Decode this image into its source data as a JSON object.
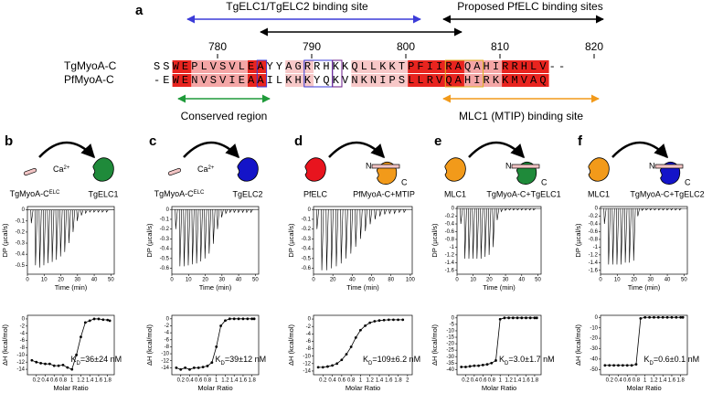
{
  "panel_a": {
    "letter": "a",
    "top_left_label": "TgELC1/TgELC2 binding site",
    "top_right_label": "Proposed PfELC binding sites",
    "positions": [
      780,
      790,
      800,
      810,
      820
    ],
    "rows": [
      {
        "name": "TgMyoA-C",
        "sequence": "SSWEPLVSVLEAYYAGRRHKKQLLKKTPFIIRAQAHIRRHLV--"
      },
      {
        "name": "PfMyoA-C",
        "sequence": "-EWENVSVIEAAILKHKYQKVNKNIPSLLRVQAHIRKKMVAQ"
      }
    ],
    "bottom_left_label": "Conserved region",
    "bottom_right_label": "MLC1 (MTIP) binding site"
  },
  "panels": [
    {
      "letter": "b",
      "cartoon": {
        "left_label": "TgMyoA-C",
        "left_sup": "ELC",
        "ion": "Ca",
        "ion_sup": "2+",
        "right_label": "TgELC1",
        "left_color": "#f2c4c4",
        "right_color": "#1f8a3a"
      },
      "dp": {
        "ylabel": "DP (µcal/s)",
        "xlabel": "Time (min)",
        "xlim": [
          0,
          52
        ],
        "xticks": [
          0,
          10,
          20,
          30,
          40,
          50
        ],
        "ylim": [
          -0.58,
          0.03
        ],
        "yticks": [
          0,
          -0.1,
          -0.2,
          -0.3,
          -0.4,
          -0.5
        ],
        "times": [
          2,
          4.5,
          7,
          9.5,
          12,
          14.5,
          17,
          19.5,
          22,
          24.5,
          27,
          29.5,
          32,
          34.5,
          37,
          39.5,
          42,
          44.5,
          47
        ],
        "peaks": [
          -0.12,
          -0.5,
          -0.52,
          -0.5,
          -0.48,
          -0.47,
          -0.45,
          -0.42,
          -0.38,
          -0.3,
          -0.2,
          -0.1,
          -0.05,
          -0.03,
          -0.02,
          -0.02,
          -0.02,
          -0.02,
          -0.02
        ]
      },
      "dh": {
        "ylabel": "ΔH (kcal/mol)",
        "xlabel": "Molar Ratio",
        "xlim": [
          0,
          1.95
        ],
        "xticks": [
          0.2,
          0.4,
          0.6,
          0.8,
          1,
          1.2,
          1.4,
          1.6,
          1.8
        ],
        "ylim": [
          -15.5,
          1
        ],
        "yticks": [
          0,
          -2,
          -4,
          -6,
          -8,
          -10,
          -12,
          -14
        ],
        "x": [
          0.1,
          0.2,
          0.3,
          0.4,
          0.5,
          0.6,
          0.7,
          0.8,
          0.9,
          1,
          1.1,
          1.2,
          1.3,
          1.4,
          1.5,
          1.6,
          1.7,
          1.8,
          1.85
        ],
        "y": [
          -11.5,
          -12,
          -12.3,
          -12.5,
          -12.5,
          -13,
          -13,
          -12.8,
          -13.5,
          -14,
          -10,
          -5,
          -1,
          -0.5,
          0,
          0,
          -0.2,
          -0.3,
          -0.5
        ],
        "kd_k": "K",
        "kd_sub": "D",
        "kd_text": "=36±24 nM"
      }
    },
    {
      "letter": "c",
      "cartoon": {
        "left_label": "TgMyoA-C",
        "left_sup": "ELC",
        "ion": "Ca",
        "ion_sup": "2+",
        "right_label": "TgELC2",
        "left_color": "#f2c4c4",
        "right_color": "#1414c8"
      },
      "dp": {
        "ylabel": "DP (µcal/s)",
        "xlabel": "Time (min)",
        "xlim": [
          0,
          52
        ],
        "xticks": [
          0,
          10,
          20,
          30,
          40,
          50
        ],
        "ylim": [
          -0.66,
          0.03
        ],
        "yticks": [
          0,
          -0.1,
          -0.2,
          -0.3,
          -0.4,
          -0.5,
          -0.6
        ],
        "times": [
          2,
          4.5,
          7,
          9.5,
          12,
          14.5,
          17,
          19.5,
          22,
          24.5,
          27,
          29.5,
          32,
          34.5,
          37,
          39.5,
          42,
          44.5,
          47
        ],
        "peaks": [
          -0.2,
          -0.58,
          -0.58,
          -0.57,
          -0.56,
          -0.55,
          -0.53,
          -0.5,
          -0.45,
          -0.35,
          -0.2,
          -0.08,
          -0.04,
          -0.03,
          -0.03,
          -0.03,
          -0.03,
          -0.03,
          -0.03
        ]
      },
      "dh": {
        "ylabel": "ΔH (kcal/mol)",
        "xlabel": "Molar Ratio",
        "xlim": [
          0,
          1.95
        ],
        "xticks": [
          0.2,
          0.4,
          0.6,
          0.8,
          1,
          1.2,
          1.4,
          1.6,
          1.8
        ],
        "ylim": [
          -16,
          1
        ],
        "yticks": [
          0,
          -2,
          -4,
          -6,
          -8,
          -10,
          -12,
          -14
        ],
        "x": [
          0.1,
          0.2,
          0.3,
          0.4,
          0.5,
          0.6,
          0.7,
          0.8,
          0.9,
          1,
          1.1,
          1.2,
          1.3,
          1.4,
          1.5,
          1.6,
          1.7,
          1.8,
          1.85
        ],
        "y": [
          -14,
          -14.5,
          -14,
          -14.5,
          -14,
          -14,
          -13.8,
          -13.5,
          -12.5,
          -8,
          -2,
          -0.5,
          0,
          0,
          0,
          0,
          0,
          0,
          0
        ],
        "kd_k": "K",
        "kd_sub": "D",
        "kd_text": "=39±12 nM"
      }
    },
    {
      "letter": "d",
      "cartoon": {
        "left_label": "PfELC",
        "right_label": "PfMyoA-C+MTIP",
        "n": "N",
        "c": "C",
        "left_color": "#e8141e",
        "right_color": "#f29a1a"
      },
      "dp": {
        "ylabel": "DP (µcal/s)",
        "xlabel": "Time (min)",
        "xlim": [
          0,
          102
        ],
        "xticks": [
          0,
          20,
          40,
          60,
          80,
          100
        ],
        "ylim": [
          -0.66,
          0.03
        ],
        "yticks": [
          0,
          -0.1,
          -0.2,
          -0.3,
          -0.4,
          -0.5,
          -0.6
        ],
        "times": [
          3,
          8,
          13,
          18,
          23,
          28,
          33,
          38,
          43,
          48,
          53,
          58,
          63,
          68,
          73,
          78,
          83,
          88,
          93
        ],
        "peaks": [
          -0.2,
          -0.62,
          -0.62,
          -0.6,
          -0.58,
          -0.55,
          -0.5,
          -0.45,
          -0.38,
          -0.3,
          -0.22,
          -0.15,
          -0.1,
          -0.07,
          -0.05,
          -0.04,
          -0.04,
          -0.03,
          -0.03
        ]
      },
      "dh": {
        "ylabel": "ΔH (kcal/mol)",
        "xlabel": "Molar Ratio",
        "xlim": [
          0,
          2.1
        ],
        "xticks": [
          0.2,
          0.4,
          0.6,
          0.8,
          1,
          1.2,
          1.4,
          1.6,
          1.8,
          2
        ],
        "ylim": [
          -15,
          1
        ],
        "yticks": [
          0,
          -2,
          -4,
          -6,
          -8,
          -10,
          -12,
          -14
        ],
        "x": [
          0.1,
          0.2,
          0.3,
          0.4,
          0.5,
          0.6,
          0.7,
          0.8,
          0.9,
          1,
          1.1,
          1.2,
          1.3,
          1.4,
          1.5,
          1.6,
          1.7,
          1.8,
          1.9
        ],
        "y": [
          -13,
          -13,
          -12.8,
          -12.5,
          -12,
          -11,
          -9.5,
          -7.5,
          -5,
          -3,
          -1.8,
          -1,
          -0.6,
          -0.4,
          -0.3,
          -0.2,
          -0.2,
          -0.2,
          -0.2
        ],
        "kd_k": "K",
        "kd_sub": "D",
        "kd_text": "=109±6.2 nM"
      }
    },
    {
      "letter": "e",
      "cartoon": {
        "left_label": "MLC1",
        "right_label": "TgMyoA-C+TgELC1",
        "n": "N",
        "c": "C",
        "left_color": "#f29a1a",
        "right_color": "#1f8a3a"
      },
      "dp": {
        "ylabel": "DP (µcal/s)",
        "xlabel": "Time (min)",
        "xlim": [
          0,
          52
        ],
        "xticks": [
          0,
          10,
          20,
          30,
          40,
          50
        ],
        "ylim": [
          -1.7,
          0.05
        ],
        "yticks": [
          0,
          -0.2,
          -0.4,
          -0.6,
          -0.8,
          -1,
          -1.2,
          -1.4,
          -1.6
        ],
        "times": [
          2,
          4.5,
          7,
          9.5,
          12,
          14.5,
          17,
          19.5,
          22,
          24.5,
          27,
          29.5,
          32,
          34.5,
          37,
          39.5,
          42,
          44.5,
          47
        ],
        "peaks": [
          -0.4,
          -1.3,
          -1.3,
          -1.3,
          -1.3,
          -1.3,
          -1.25,
          -1.2,
          -1,
          -0.3,
          -0.08,
          -0.05,
          -0.04,
          -0.04,
          -0.04,
          -0.04,
          -0.04,
          -0.04,
          -0.04
        ]
      },
      "dh": {
        "ylabel": "ΔH (kcal/mol)",
        "xlabel": "Molar Ratio",
        "xlim": [
          0,
          1.95
        ],
        "xticks": [
          0.2,
          0.4,
          0.6,
          0.8,
          1,
          1.2,
          1.4,
          1.6,
          1.8
        ],
        "ylim": [
          -44,
          2
        ],
        "yticks": [
          0,
          -5,
          -10,
          -15,
          -20,
          -25,
          -30,
          -35,
          -40
        ],
        "x": [
          0.1,
          0.2,
          0.3,
          0.4,
          0.5,
          0.6,
          0.7,
          0.8,
          0.9,
          1,
          1.1,
          1.2,
          1.3,
          1.4,
          1.5,
          1.6,
          1.7,
          1.8,
          1.85
        ],
        "y": [
          -38,
          -38,
          -37.5,
          -37,
          -37,
          -36.5,
          -36,
          -35,
          -33,
          -1,
          0,
          0,
          0,
          0,
          0,
          0,
          0,
          0,
          0
        ],
        "kd_k": "K",
        "kd_sub": "D",
        "kd_text": "=3.0±1.7 nM"
      }
    },
    {
      "letter": "f",
      "cartoon": {
        "left_label": "MLC1",
        "right_label": "TgMyoA-C+TgELC2",
        "n": "N",
        "c": "C",
        "left_color": "#f29a1a",
        "right_color": "#1414c8"
      },
      "dp": {
        "ylabel": "DP (µcal/s)",
        "xlabel": "Time (min)",
        "xlim": [
          0,
          52
        ],
        "xticks": [
          0,
          10,
          20,
          30,
          40,
          50
        ],
        "ylim": [
          -1.7,
          0.05
        ],
        "yticks": [
          0,
          -0.2,
          -0.4,
          -0.6,
          -0.8,
          -1,
          -1.2,
          -1.4,
          -1.6
        ],
        "times": [
          2,
          4.5,
          7,
          9.5,
          12,
          14.5,
          17,
          19.5,
          22,
          24.5,
          27,
          29.5,
          32,
          34.5,
          37,
          39.5,
          42,
          44.5,
          47
        ],
        "peaks": [
          -0.4,
          -1.45,
          -1.45,
          -1.45,
          -1.45,
          -1.4,
          -1.4,
          -1.35,
          -0.2,
          -0.05,
          -0.04,
          -0.04,
          -0.04,
          -0.04,
          -0.04,
          -0.04,
          -0.04,
          -0.04,
          -0.04
        ]
      },
      "dh": {
        "ylabel": "ΔH (kcal/mol)",
        "xlabel": "Molar Ratio",
        "xlim": [
          0,
          1.95
        ],
        "xticks": [
          0.2,
          0.4,
          0.6,
          0.8,
          1,
          1.2,
          1.4,
          1.6,
          1.8
        ],
        "ylim": [
          -55,
          2
        ],
        "yticks": [
          0,
          -10,
          -20,
          -30,
          -40,
          -50
        ],
        "x": [
          0.1,
          0.2,
          0.3,
          0.4,
          0.5,
          0.6,
          0.7,
          0.8,
          0.9,
          1,
          1.1,
          1.2,
          1.3,
          1.4,
          1.5,
          1.6,
          1.7,
          1.8,
          1.85
        ],
        "y": [
          -46,
          -46,
          -46,
          -46,
          -46,
          -46,
          -46,
          -45,
          -1,
          0,
          0,
          0,
          0,
          0,
          0,
          0,
          0,
          0,
          0
        ],
        "kd_k": "K",
        "kd_sub": "D",
        "kd_text": "=0.6±0.1 nM"
      }
    }
  ]
}
